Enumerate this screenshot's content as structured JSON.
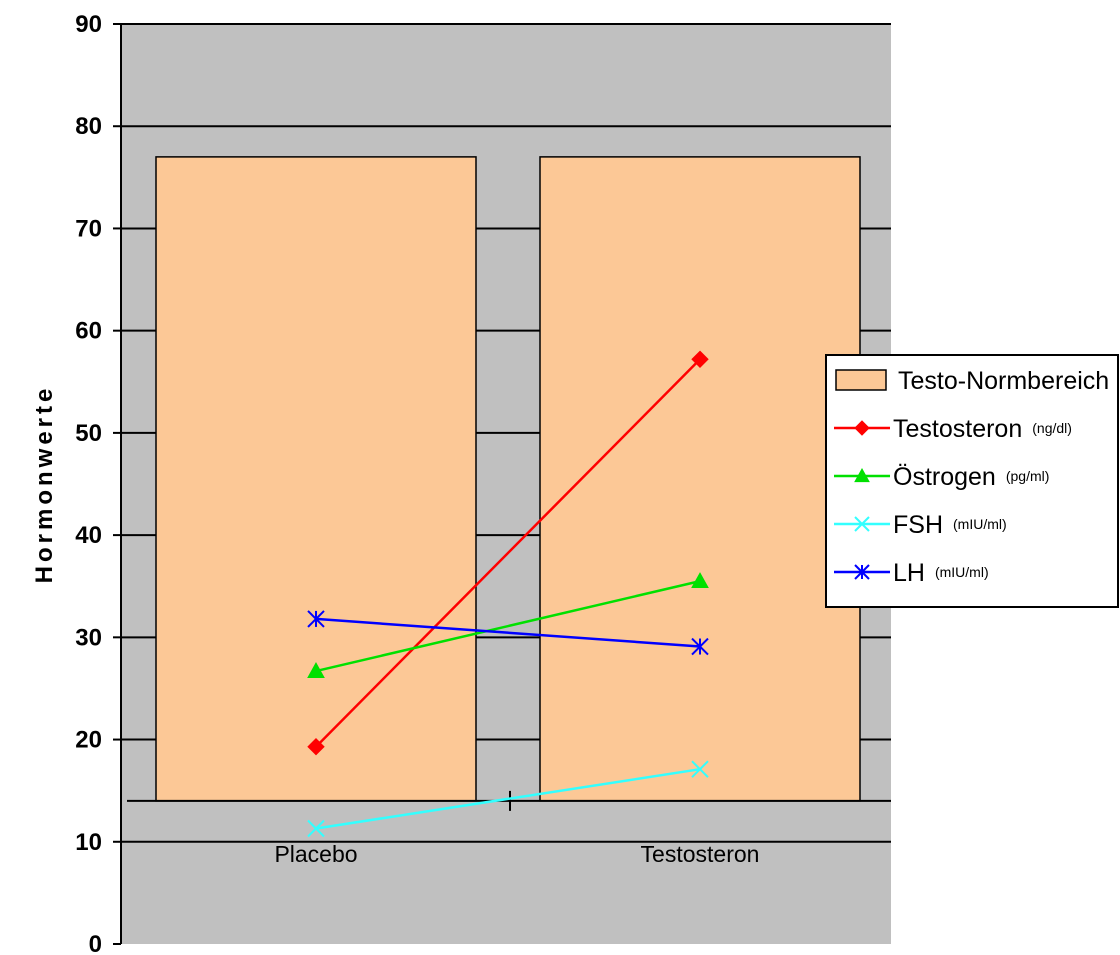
{
  "chart_data": {
    "type": "bar",
    "title": "",
    "xlabel": "",
    "ylabel": "Hormonwerte",
    "ylim": [
      0,
      90
    ],
    "yticks": [
      0,
      10,
      20,
      30,
      40,
      50,
      60,
      70,
      80,
      90
    ],
    "grid": true,
    "legend_position": "right",
    "categories": [
      "Placebo",
      "Testosteron"
    ],
    "bar_series": {
      "name": "Testo-Normbereich",
      "low": 14,
      "high": 77,
      "color": "#fcc896"
    },
    "series": [
      {
        "name": "Testosteron",
        "unit": "(ng/dl)",
        "values": [
          19.3,
          57.2
        ],
        "color": "#ff0000",
        "marker": "diamond"
      },
      {
        "name": "Östrogen",
        "unit": "(pg/ml)",
        "values": [
          26.7,
          35.5
        ],
        "color": "#00e000",
        "marker": "triangle"
      },
      {
        "name": "FSH",
        "unit": "(mIU/ml)",
        "values": [
          11.3,
          17.1
        ],
        "color": "#33ffff",
        "marker": "x"
      },
      {
        "name": "LH",
        "unit": "(mIU/ml)",
        "values": [
          31.8,
          29.1
        ],
        "color": "#0000ff",
        "marker": "asterisk"
      }
    ],
    "colors": {
      "plot_background": "#c0c0c0",
      "gridline": "#000000"
    }
  }
}
